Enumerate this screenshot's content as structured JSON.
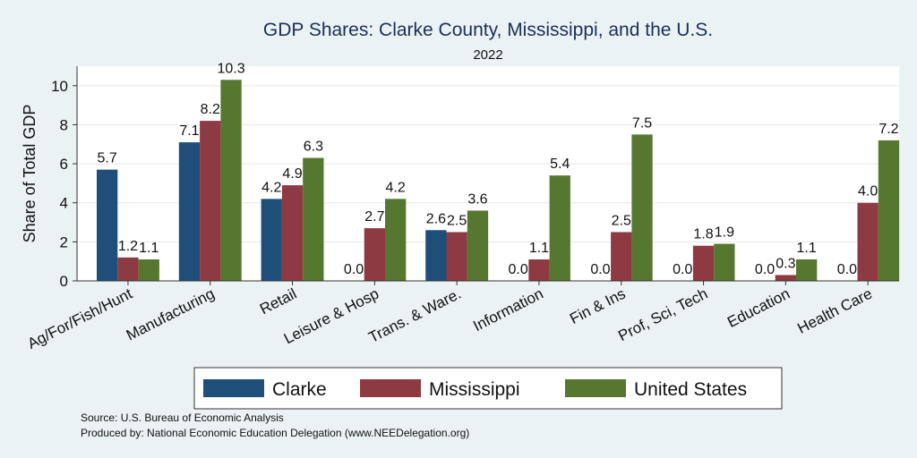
{
  "chart_data": {
    "type": "bar",
    "title": "GDP Shares: Clarke County, Mississippi, and the U.S.",
    "subtitle": "2022",
    "xlabel": "",
    "ylabel": "Share of Total GDP",
    "ylim": [
      0,
      11
    ],
    "yticks": [
      0,
      2,
      4,
      6,
      8,
      10
    ],
    "grid": true,
    "legend_position": "bottom",
    "categories": [
      "Ag/For/Fish/Hunt",
      "Manufacturing",
      "Retail",
      "Leisure & Hosp",
      "Trans. & Ware.",
      "Information",
      "Fin & Ins",
      "Prof, Sci, Tech",
      "Education",
      "Health Care"
    ],
    "series": [
      {
        "name": "Clarke",
        "color": "#1f4e79",
        "values": [
          5.7,
          7.1,
          4.2,
          0.0,
          2.6,
          0.0,
          0.0,
          0.0,
          0.0,
          0.0
        ],
        "labels": [
          "5.7",
          "7.1",
          "4.2",
          "0.0",
          "2.6",
          "0.0",
          "0.0",
          "0.0",
          "0.0",
          "0.0"
        ]
      },
      {
        "name": "Mississippi",
        "color": "#8e3a42",
        "values": [
          1.2,
          8.2,
          4.9,
          2.7,
          2.5,
          1.1,
          2.5,
          1.8,
          0.3,
          4.0
        ],
        "labels": [
          "1.2",
          "8.2",
          "4.9",
          "2.7",
          "2.5",
          "1.1",
          "2.5",
          "1.8",
          "0.3",
          "4.0"
        ]
      },
      {
        "name": "United States",
        "color": "#56772f",
        "values": [
          1.1,
          10.3,
          6.3,
          4.2,
          3.6,
          5.4,
          7.5,
          1.9,
          1.1,
          7.2
        ],
        "labels": [
          "1.1",
          "10.3",
          "6.3",
          "4.2",
          "3.6",
          "5.4",
          "7.5",
          "1.9",
          "1.1",
          "7.2"
        ]
      }
    ],
    "notes": [
      "Source: U.S. Bureau of Economic Analysis",
      "Produced by: National Economic Education Delegation (www.NEEDelegation.org)"
    ]
  }
}
